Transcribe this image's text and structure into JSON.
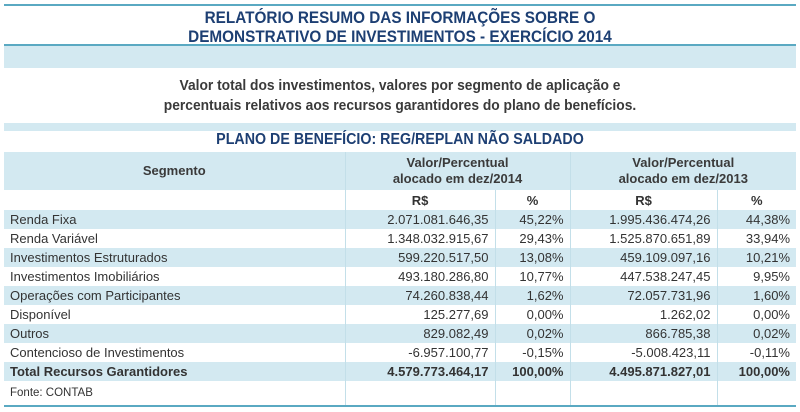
{
  "title_line1": "RELATÓRIO RESUMO DAS INFORMAÇÕES SOBRE O",
  "title_line2": "DEMONSTRATIVO DE INVESTIMENTOS - EXERCÍCIO 2014",
  "subtitle_line1": "Valor total dos investimentos, valores por segmento de aplicação e",
  "subtitle_line2": "percentuais relativos aos recursos garantidores do plano de benefícios.",
  "section_title": "PLANO DE BENEFÍCIO: REG/REPLAN NÃO SALDADO",
  "table": {
    "col_segment": "Segmento",
    "col_2014_a": "Valor/Percentual",
    "col_2014_b": "alocado em dez/2014",
    "col_2013_a": "Valor/Percentual",
    "col_2013_b": "alocado em dez/2013",
    "sub_rs": "R$",
    "sub_pct": "%",
    "rows": [
      {
        "segment": "Renda Fixa",
        "v2014": "2.071.081.646,35",
        "p2014": "45,22%",
        "v2013": "1.995.436.474,26",
        "p2013": "44,38%"
      },
      {
        "segment": "Renda Variável",
        "v2014": "1.348.032.915,67",
        "p2014": "29,43%",
        "v2013": "1.525.870.651,89",
        "p2013": "33,94%"
      },
      {
        "segment": "Investimentos Estruturados",
        "v2014": "599.220.517,50",
        "p2014": "13,08%",
        "v2013": "459.109.097,16",
        "p2013": "10,21%"
      },
      {
        "segment": "Investimentos Imobiliários",
        "v2014": "493.180.286,80",
        "p2014": "10,77%",
        "v2013": "447.538.247,45",
        "p2013": "9,95%"
      },
      {
        "segment": "Operações com Participantes",
        "v2014": "74.260.838,44",
        "p2014": "1,62%",
        "v2013": "72.057.731,96",
        "p2013": "1,60%"
      },
      {
        "segment": "Disponível",
        "v2014": "125.277,69",
        "p2014": "0,00%",
        "v2013": "1.262,02",
        "p2013": "0,00%"
      },
      {
        "segment": "Outros",
        "v2014": "829.082,49",
        "p2014": "0,02%",
        "v2013": "866.785,38",
        "p2013": "0,02%"
      },
      {
        "segment": "Contencioso de Investimentos",
        "v2014": "-6.957.100,77",
        "p2014": "-0,15%",
        "v2013": "-5.008.423,11",
        "p2013": "-0,11%"
      },
      {
        "segment": "Total Recursos Garantidores",
        "v2014": "4.579.773.464,17",
        "p2014": "100,00%",
        "v2013": "4.495.871.827,01",
        "p2013": "100,00%"
      }
    ],
    "source": "Fonte: CONTAB"
  }
}
